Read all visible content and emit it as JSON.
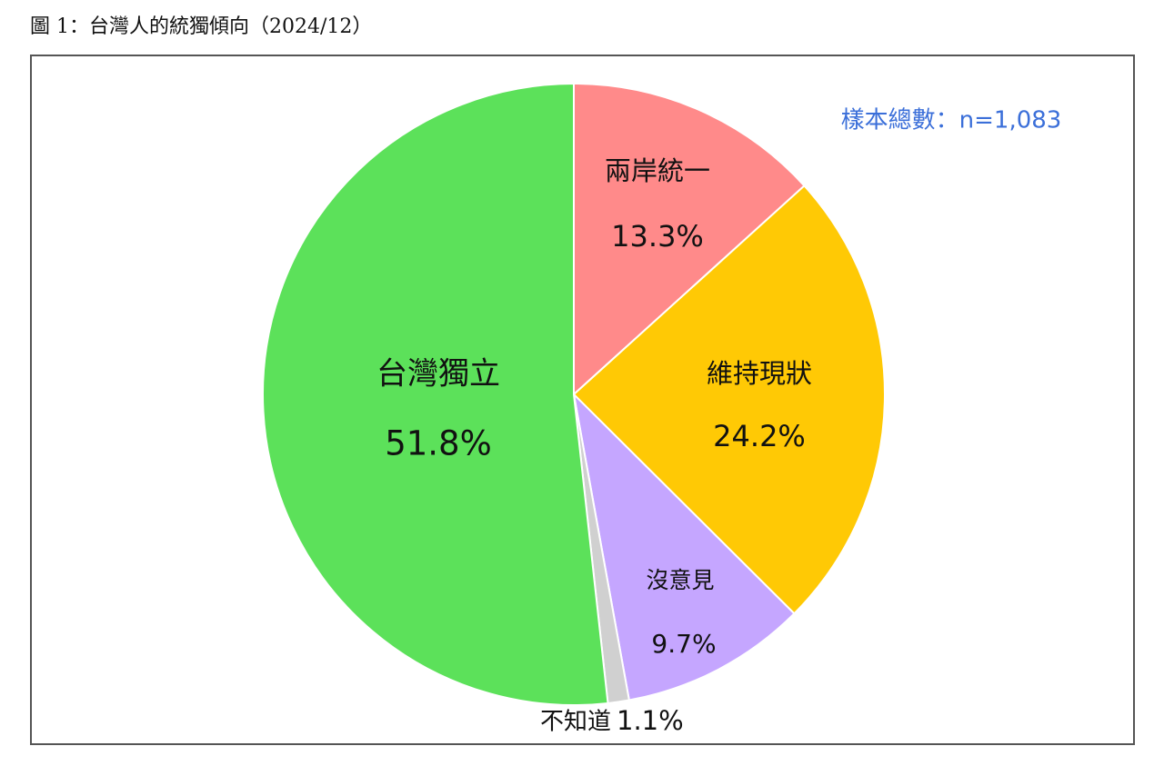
{
  "chart_data": {
    "type": "pie",
    "title": "圖 1：台灣人的統獨傾向（2024/12）",
    "annotation": "樣本總數：n=1,083",
    "categories": [
      "兩岸統一",
      "維持現狀",
      "沒意見",
      "不知道",
      "台灣獨立"
    ],
    "values": [
      13.3,
      24.2,
      9.7,
      1.1,
      51.8
    ],
    "value_labels": [
      "13.3%",
      "24.2%",
      "9.7%",
      "1.1%",
      "51.8%"
    ],
    "colors": [
      "#ff8a8a",
      "#ffc905",
      "#c5a6ff",
      "#d0d0d0",
      "#5ce15a"
    ]
  }
}
